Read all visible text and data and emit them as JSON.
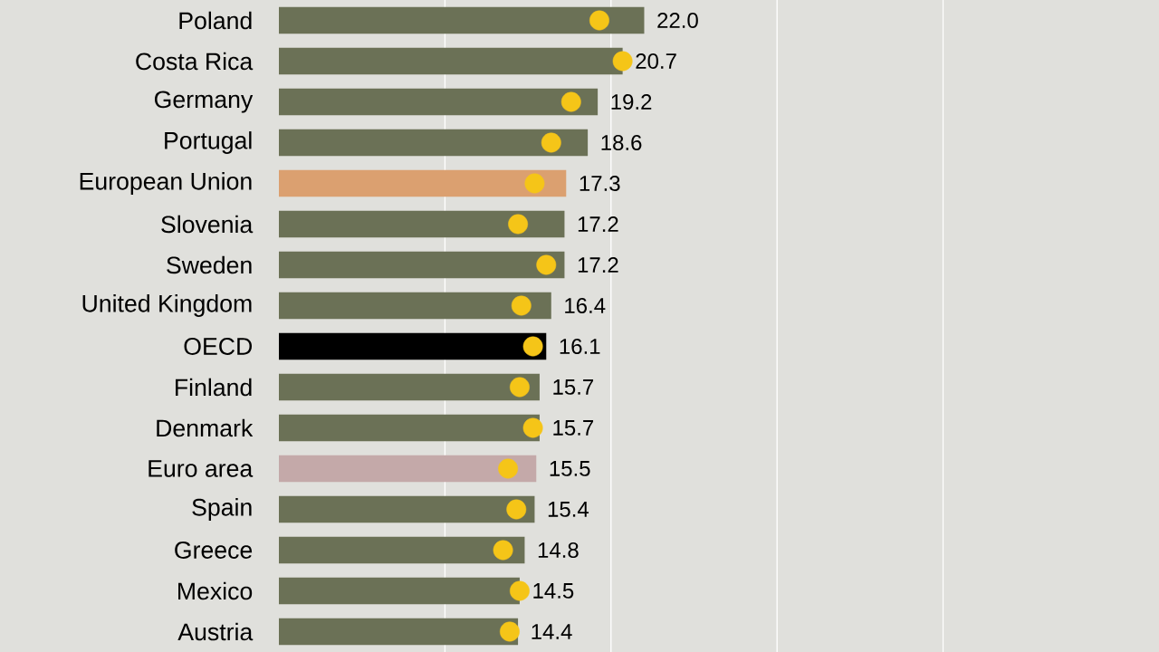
{
  "chart_data": {
    "type": "bar",
    "orientation": "horizontal",
    "categories": [
      "Poland",
      "Costa Rica",
      "Germany",
      "Portugal",
      "European Union",
      "Slovenia",
      "Sweden",
      "United Kingdom",
      "OECD",
      "Finland",
      "Denmark",
      "Euro area",
      "Spain",
      "Greece",
      "Mexico",
      "Austria"
    ],
    "series": [
      {
        "values": [
          22.0,
          20.7,
          19.2,
          18.6,
          17.3,
          17.2,
          17.2,
          16.4,
          16.1,
          15.7,
          15.7,
          15.5,
          15.4,
          14.8,
          14.5,
          14.4
        ],
        "value_labels": [
          "22.0",
          "20.7",
          "19.2",
          "18.6",
          "17.3",
          "17.2",
          "17.2",
          "16.4",
          "16.1",
          "15.7",
          "15.7",
          "15.5",
          "15.4",
          "14.8",
          "14.5",
          "14.4"
        ],
        "colors": [
          "#6b7156",
          "#6b7156",
          "#6b7156",
          "#6b7156",
          "#dba070",
          "#6b7156",
          "#6b7156",
          "#6b7156",
          "#000000",
          "#6b7156",
          "#6b7156",
          "#c4a9a9",
          "#6b7156",
          "#6b7156",
          "#6b7156",
          "#6b7156"
        ]
      },
      {
        "type": "scatter",
        "color": "#f5c518",
        "marker": "circle",
        "values": [
          19.3,
          20.7,
          17.6,
          16.4,
          15.4,
          14.4,
          16.1,
          14.6,
          15.3,
          14.5,
          15.3,
          13.8,
          14.3,
          13.5,
          14.5,
          13.9
        ]
      }
    ],
    "xlim": [
      0,
      53
    ],
    "xticks": [
      {
        "value": 10,
        "label": null
      },
      {
        "value": 20,
        "label": null
      },
      {
        "value": 30,
        "label": null
      },
      {
        "value": 40,
        "label": null
      }
    ],
    "grid": "x",
    "tick_labels": "y"
  }
}
